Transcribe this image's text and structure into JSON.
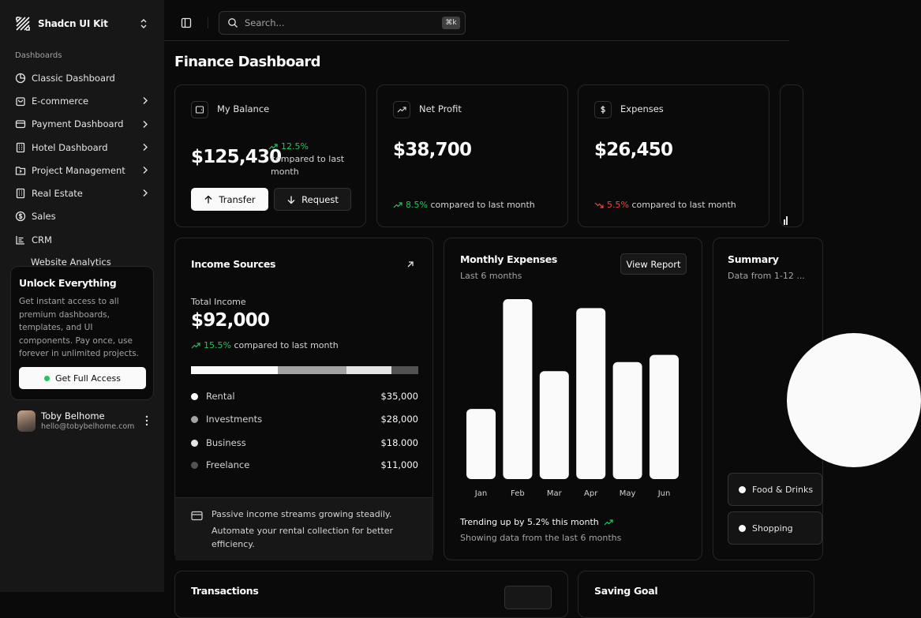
{
  "sidebar": {
    "brand": "Shadcn UI Kit",
    "section_label": "Dashboards",
    "items": [
      {
        "label": "Classic Dashboard",
        "icon": "chart-pie-icon",
        "chevron": false
      },
      {
        "label": "E-commerce",
        "icon": "shopping-bag-icon",
        "chevron": true
      },
      {
        "label": "Payment Dashboard",
        "icon": "credit-card-icon",
        "chevron": true
      },
      {
        "label": "Hotel Dashboard",
        "icon": "building-icon",
        "chevron": true
      },
      {
        "label": "Project Management",
        "icon": "folder-icon",
        "chevron": true
      },
      {
        "label": "Real Estate",
        "icon": "building-icon",
        "chevron": true
      },
      {
        "label": "Sales",
        "icon": "dollar-circle-icon",
        "chevron": false
      },
      {
        "label": "CRM",
        "icon": "list-icon",
        "chevron": false
      }
    ],
    "partial_item": "Website Analytics",
    "promo": {
      "title": "Unlock Everything",
      "text": "Get instant access to all premium dashboards, templates, and UI components. Pay once, use forever in unlimited projects.",
      "button": "Get Full Access"
    },
    "user": {
      "name": "Toby Belhome",
      "email": "hello@tobybelhome.com"
    }
  },
  "topbar": {
    "search_placeholder": "Search...",
    "shortcut": "⌘k"
  },
  "page_title": "Finance Dashboard",
  "balance": {
    "label": "My Balance",
    "value": "$125,430",
    "delta": "12.5%",
    "delta_text": "compared to last month",
    "transfer": "Transfer",
    "request": "Request"
  },
  "net_profit": {
    "label": "Net Profit",
    "value": "$38,700",
    "delta": "8.5%",
    "delta_text": "compared to last month"
  },
  "expenses": {
    "label": "Expenses",
    "value": "$26,450",
    "delta": "5.5%",
    "delta_text": "compared to last month"
  },
  "income": {
    "title": "Income Sources",
    "total_label": "Total Income",
    "total": "$92,000",
    "delta": "15.5%",
    "delta_text": "compared to last month",
    "sources": [
      {
        "name": "Rental",
        "value": "$35,000",
        "amount": 35000,
        "color": "#fafafa"
      },
      {
        "name": "Investments",
        "value": "$28,000",
        "amount": 28000,
        "color": "#a3a3a3"
      },
      {
        "name": "Business",
        "value": "$18.000",
        "amount": 18000,
        "color": "#e5e5e5"
      },
      {
        "name": "Freelance",
        "value": "$11,000",
        "amount": 11000,
        "color": "#525252"
      }
    ],
    "footer_line1": "Passive income streams growing steadily.",
    "footer_line2": "Automate your rental collection for better efficiency."
  },
  "monthly": {
    "title": "Monthly Expenses",
    "subtitle": "Last 6 months",
    "button": "View Report",
    "trend": "Trending up by 5.2% this month",
    "trend_sub": "Showing data from the last 6 months"
  },
  "chart_data": {
    "type": "bar",
    "categories": [
      "Jan",
      "Feb",
      "Mar",
      "Apr",
      "May",
      "Jun"
    ],
    "values": [
      39,
      100,
      60,
      95,
      65,
      69
    ],
    "title": "Monthly Expenses",
    "xlabel": "",
    "ylabel": "",
    "grid": false,
    "color": "#fafafa"
  },
  "summary": {
    "title": "Summary",
    "subtitle": "Data from 1-12 ...",
    "legend": [
      "Food & Drinks",
      "Shopping"
    ]
  },
  "bottom": {
    "transactions": "Transactions",
    "saving_goal": "Saving Goal"
  },
  "colors": {
    "background": "#0a0a0a",
    "sidebar": "#171717",
    "border": "#262626",
    "positive": "#22c55e",
    "negative": "#ef4444"
  }
}
